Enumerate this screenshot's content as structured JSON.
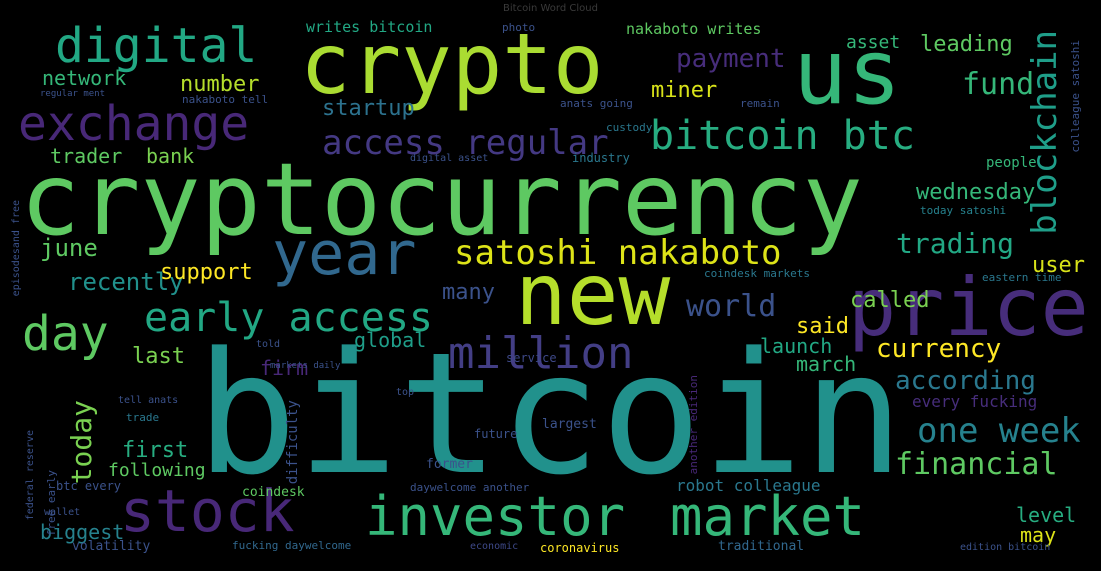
{
  "title": "Bitcoin Word Cloud",
  "palette": {
    "purple": "#46327e",
    "indigo": "#3b528b",
    "blue": "#365c8d",
    "teal": "#21918c",
    "aqua": "#27ad81",
    "green": "#5ec962",
    "lime": "#aadc32",
    "yellow": "#fde725"
  },
  "words": [
    {
      "text": "bitcoin",
      "color": "#21918c"
    },
    {
      "text": "cryptocurrency",
      "color": "#5ec962"
    },
    {
      "text": "crypto",
      "color": "#aadc32"
    },
    {
      "text": "us",
      "color": "#35b779"
    },
    {
      "text": "price",
      "color": "#472d7b"
    },
    {
      "text": "new",
      "color": "#b5de2b"
    },
    {
      "text": "investor",
      "color": "#35b779"
    },
    {
      "text": "market",
      "color": "#35b779"
    },
    {
      "text": "stock",
      "color": "#482878"
    },
    {
      "text": "exchange",
      "color": "#482878"
    },
    {
      "text": "digital",
      "color": "#22a884"
    },
    {
      "text": "year",
      "color": "#31688e"
    },
    {
      "text": "bitcoin btc",
      "color": "#27ad81"
    },
    {
      "text": "satoshi nakaboto",
      "color": "#dde318"
    },
    {
      "text": "million",
      "color": "#433e85"
    },
    {
      "text": "day",
      "color": "#5ec962"
    },
    {
      "text": "early access",
      "color": "#22a884"
    },
    {
      "text": "blockchain",
      "color": "#1f9e89"
    },
    {
      "text": "access regular",
      "color": "#443983"
    },
    {
      "text": "one week",
      "color": "#26828e"
    },
    {
      "text": "financial",
      "color": "#5ec962"
    },
    {
      "text": "payment",
      "color": "#472d7b"
    },
    {
      "text": "world",
      "color": "#3b528b"
    },
    {
      "text": "currency",
      "color": "#fde725"
    },
    {
      "text": "according",
      "color": "#2a788e"
    },
    {
      "text": "fund",
      "color": "#35b779"
    },
    {
      "text": "trading",
      "color": "#22a884"
    },
    {
      "text": "today",
      "color": "#7ad151"
    },
    {
      "text": "leading",
      "color": "#5ec962"
    },
    {
      "text": "number",
      "color": "#b5de2b"
    },
    {
      "text": "network",
      "color": "#35b779"
    },
    {
      "text": "miner",
      "color": "#d8e219"
    },
    {
      "text": "asset",
      "color": "#35b779"
    },
    {
      "text": "trader",
      "color": "#5ec962"
    },
    {
      "text": "bank",
      "color": "#7ad151"
    },
    {
      "text": "startup",
      "color": "#2c728e"
    },
    {
      "text": "wednesday",
      "color": "#35b779"
    },
    {
      "text": "june",
      "color": "#5ec962"
    },
    {
      "text": "recently",
      "color": "#21918c"
    },
    {
      "text": "support",
      "color": "#fde725"
    },
    {
      "text": "called",
      "color": "#7ad151"
    },
    {
      "text": "user",
      "color": "#d8e219"
    },
    {
      "text": "many",
      "color": "#3b528b"
    },
    {
      "text": "said",
      "color": "#fde725"
    },
    {
      "text": "launch",
      "color": "#22a884"
    },
    {
      "text": "march",
      "color": "#35b779"
    },
    {
      "text": "last",
      "color": "#7ad151"
    },
    {
      "text": "global",
      "color": "#1f9e89"
    },
    {
      "text": "firm",
      "color": "#482878"
    },
    {
      "text": "first",
      "color": "#27ad81"
    },
    {
      "text": "biggest",
      "color": "#26828e"
    },
    {
      "text": "level",
      "color": "#27ad81"
    },
    {
      "text": "may",
      "color": "#dde318"
    },
    {
      "text": "every fucking",
      "color": "#472d7b"
    },
    {
      "text": "robot colleague",
      "color": "#2a788e"
    },
    {
      "text": "following",
      "color": "#5ec962"
    },
    {
      "text": "nakaboto writes",
      "color": "#5ec962"
    },
    {
      "text": "writes bitcoin",
      "color": "#22a884"
    },
    {
      "text": "coindesk",
      "color": "#5ec962"
    },
    {
      "text": "volatility",
      "color": "#3b528b"
    },
    {
      "text": "fucking daywelcome",
      "color": "#31688e"
    },
    {
      "text": "daywelcome another",
      "color": "#3b528b"
    },
    {
      "text": "today satoshi",
      "color": "#26828e"
    },
    {
      "text": "coindesk markets",
      "color": "#2a788e"
    },
    {
      "text": "custody",
      "color": "#2a788e"
    },
    {
      "text": "industry",
      "color": "#2a788e"
    },
    {
      "text": "people",
      "color": "#35b779"
    },
    {
      "text": "eastern time",
      "color": "#2a788e"
    },
    {
      "text": "difficulty",
      "color": "#3b528b"
    },
    {
      "text": "future",
      "color": "#3b528b"
    },
    {
      "text": "former",
      "color": "#3b528b"
    },
    {
      "text": "coronavirus",
      "color": "#fde725"
    },
    {
      "text": "traditional",
      "color": "#31688e"
    },
    {
      "text": "service",
      "color": "#3e4989"
    },
    {
      "text": "largest",
      "color": "#3b528b"
    },
    {
      "text": "another edition",
      "color": "#482878"
    },
    {
      "text": "btc every",
      "color": "#3b528b"
    },
    {
      "text": "economic",
      "color": "#3e4989"
    },
    {
      "text": "wallet",
      "color": "#3b528b"
    },
    {
      "text": "trade",
      "color": "#2a788e"
    },
    {
      "text": "free early",
      "color": "#3b528b"
    },
    {
      "text": "federal reserve",
      "color": "#3b528b"
    },
    {
      "text": "tell anats",
      "color": "#3b528b"
    },
    {
      "text": "told",
      "color": "#3b528b"
    },
    {
      "text": "top",
      "color": "#3b528b"
    },
    {
      "text": "photo",
      "color": "#3b528b"
    },
    {
      "text": "markets daily",
      "color": "#3b528b"
    },
    {
      "text": "colleague satoshi",
      "color": "#3b528b"
    },
    {
      "text": "episodesand free",
      "color": "#3b528b"
    },
    {
      "text": "regular ment",
      "color": "#3b528b"
    },
    {
      "text": "edition bitcoin",
      "color": "#3b528b"
    },
    {
      "text": "digital asset",
      "color": "#3b528b"
    },
    {
      "text": "anats going",
      "color": "#3b528b"
    },
    {
      "text": "remain",
      "color": "#3b528b"
    },
    {
      "text": "nakaboto tell",
      "color": "#3b528b"
    }
  ]
}
